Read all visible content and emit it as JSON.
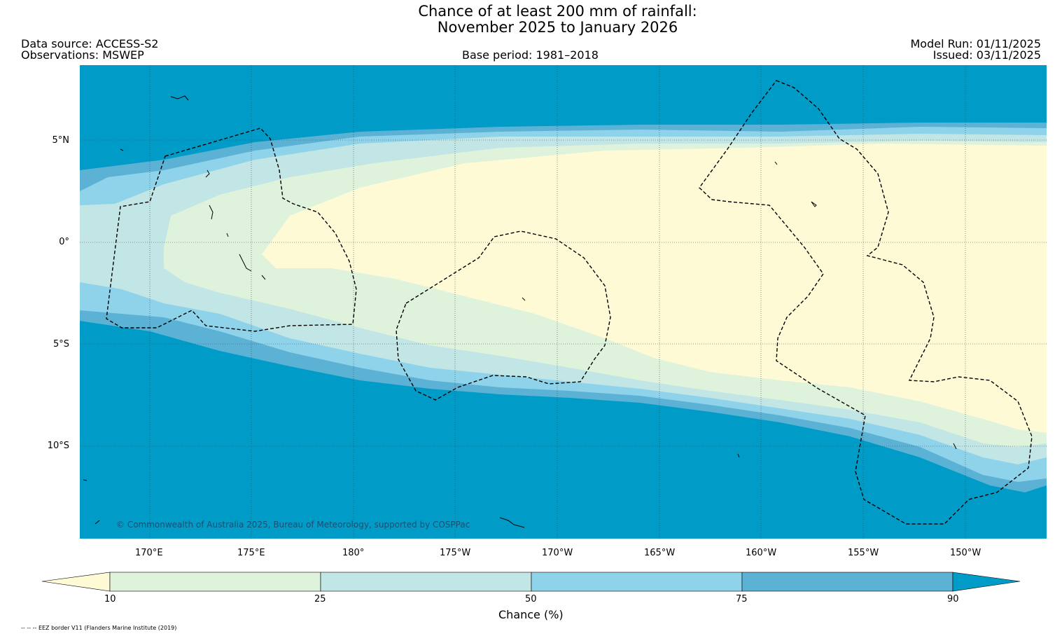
{
  "title": {
    "line1": "Chance of at least 200 mm of rainfall:",
    "line2": "November 2025 to January 2026"
  },
  "header": {
    "data_source": "Data source: ACCESS-S2",
    "observations": "Observations: MSWEP",
    "base_period": "Base period: 1981–2018",
    "model_run": "Model Run: 01/11/2025",
    "issued": "Issued: 03/11/2025"
  },
  "map": {
    "lat_labels": [
      "5°N",
      "0°",
      "5°S",
      "10°S"
    ],
    "lon_labels": [
      "170°E",
      "175°E",
      "180°",
      "175°W",
      "170°W",
      "165°W",
      "160°W",
      "155°W",
      "150°W"
    ],
    "credit": "© Commonwealth of Australia 2025, Bureau of Meteorology, supported by COSPPac",
    "lon_range": [
      166,
      213.5
    ],
    "lat_range": [
      -14.2,
      8.9
    ]
  },
  "colorbar": {
    "label": "Chance (%)",
    "ticks": [
      "10",
      "25",
      "50",
      "75",
      "90"
    ],
    "bins": [
      {
        "range": "<10",
        "color": "#fefad6"
      },
      {
        "range": "10-25",
        "color": "#dff3dc"
      },
      {
        "range": "25-50",
        "color": "#c2e5e5"
      },
      {
        "range": "50-75",
        "color": "#8fd3eb"
      },
      {
        "range": "75-90",
        "color": "#5cb2d5"
      },
      {
        "range": ">90",
        "color": "#009bc7"
      }
    ]
  },
  "footnote": "-- -- -- EEZ border V11 (Flanders Marine Institute (2019)"
}
